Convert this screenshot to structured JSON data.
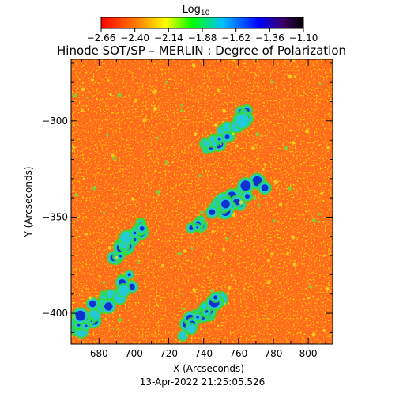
{
  "colorbar": {
    "title": "Log",
    "title_sub": "10",
    "tick_labels": [
      "−2.66",
      "−2.40",
      "−2.14",
      "−1.88",
      "−1.62",
      "−1.36",
      "−1.10"
    ]
  },
  "title": "Hinode SOT/SP – MERLIN : Degree of Polarization",
  "x_axis": {
    "label": "X (Arcseconds)",
    "tick_labels": [
      "680",
      "700",
      "720",
      "740",
      "760",
      "780",
      "800"
    ]
  },
  "y_axis": {
    "label": "Y (Arcseconds)",
    "tick_labels": [
      "−300",
      "−350",
      "−400"
    ]
  },
  "timestamp": "13-Apr-2022 21:25:05.526",
  "chart_data": {
    "type": "heatmap",
    "title": "Hinode SOT/SP – MERLIN : Degree of Polarization",
    "xlabel": "X (Arcseconds)",
    "ylabel": "Y (Arcseconds)",
    "xlim": [
      664,
      814
    ],
    "ylim": [
      -416,
      -268
    ],
    "x_ticks": [
      680,
      700,
      720,
      740,
      760,
      780,
      800
    ],
    "y_ticks": [
      -300,
      -350,
      -400
    ],
    "colorbar_range": [
      -2.66,
      -1.1
    ],
    "colorbar_ticks": [
      -2.66,
      -2.4,
      -2.14,
      -1.88,
      -1.62,
      -1.36,
      -1.1
    ],
    "colormap": [
      "#ff0000",
      "#ff8c00",
      "#ffff00",
      "#00ff00",
      "#00ffff",
      "#0000ff",
      "#0000aa",
      "#000000"
    ],
    "background_color": "#ff6a1e",
    "high_polarization_regions": [
      {
        "x": [
          730,
          776
        ],
        "y": [
          -330,
          -360
        ],
        "description": ""
      },
      {
        "x": [
          688,
          708
        ],
        "y": [
          -350,
          -375
        ]
      },
      {
        "x": [
          666,
          700
        ],
        "y": [
          -380,
          -412
        ]
      },
      {
        "x": [
          728,
          750
        ],
        "y": [
          -390,
          -412
        ]
      },
      {
        "x": [
          740,
          765
        ],
        "y": [
          -295,
          -320
        ]
      }
    ]
  }
}
